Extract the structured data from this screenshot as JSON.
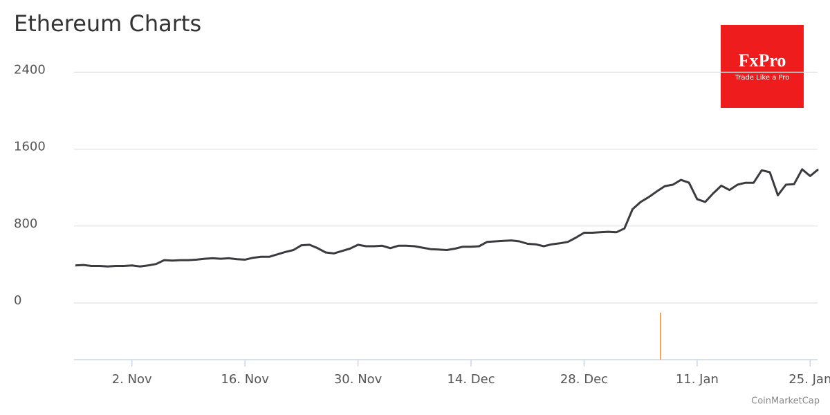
{
  "chart_data": {
    "type": "line",
    "title": "Ethereum Charts",
    "categories": [
      null,
      null,
      null,
      null,
      null,
      null,
      null,
      "2. Nov",
      null,
      null,
      null,
      null,
      null,
      null,
      null,
      null,
      null,
      null,
      null,
      null,
      null,
      "16. Nov",
      null,
      null,
      null,
      null,
      null,
      null,
      null,
      null,
      null,
      null,
      null,
      null,
      null,
      "30. Nov",
      null,
      null,
      null,
      null,
      null,
      null,
      null,
      null,
      null,
      null,
      null,
      null,
      null,
      "14. Dec",
      null,
      null,
      null,
      null,
      null,
      null,
      null,
      null,
      null,
      null,
      null,
      null,
      null,
      "28. Dec",
      null,
      null,
      null,
      null,
      null,
      null,
      null,
      null,
      null,
      null,
      null,
      null,
      null,
      "11. Jan",
      null,
      null,
      null,
      null,
      null,
      null,
      null,
      null,
      null,
      null,
      null,
      null,
      null,
      "25. Jan",
      null
    ],
    "values": [
      390,
      395,
      385,
      385,
      380,
      385,
      385,
      390,
      380,
      390,
      405,
      445,
      440,
      445,
      445,
      450,
      460,
      465,
      460,
      465,
      455,
      450,
      470,
      480,
      480,
      505,
      530,
      550,
      600,
      605,
      570,
      525,
      515,
      540,
      565,
      605,
      590,
      590,
      595,
      570,
      595,
      595,
      590,
      575,
      560,
      555,
      550,
      565,
      585,
      585,
      590,
      635,
      640,
      645,
      650,
      640,
      615,
      610,
      590,
      610,
      620,
      635,
      680,
      730,
      730,
      735,
      740,
      735,
      775,
      975,
      1050,
      1100,
      1160,
      1215,
      1230,
      1280,
      1250,
      1080,
      1050,
      1140,
      1220,
      1175,
      1230,
      1250,
      1250,
      1380,
      1360,
      1120,
      1230,
      1235,
      1390,
      1320,
      1390
    ],
    "color": "#3a3a3f",
    "ylim": [
      -590,
      2500
    ],
    "yticks": [
      0,
      800,
      1600,
      2400
    ],
    "grid": true
  },
  "logo": {
    "brand": "FxPro",
    "slogan": "Trade Like a Pro"
  },
  "credits": "CoinMarketCap"
}
